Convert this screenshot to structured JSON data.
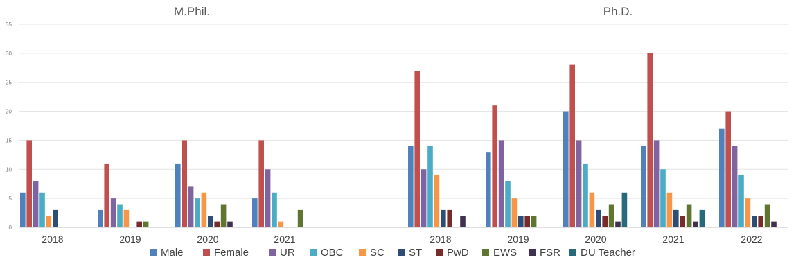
{
  "chart_data": {
    "type": "bar",
    "ylim": [
      0,
      35
    ],
    "yticks": [
      0,
      5,
      10,
      15,
      20,
      25,
      30,
      35
    ],
    "grid": true,
    "legend_position": "bottom",
    "series_names": [
      "Male",
      "Female",
      "UR",
      "OBC",
      "SC",
      "ST",
      "PwD",
      "EWS",
      "FSR",
      "DU Teacher"
    ],
    "colors": {
      "Male": "#4f81bd",
      "Female": "#c0504d",
      "UR": "#8064a2",
      "OBC": "#4bacc6",
      "SC": "#f79646",
      "ST": "#2c4d75",
      "PwD": "#772c2a",
      "EWS": "#5f7530",
      "FSR": "#403152",
      "DU Teacher": "#276a7c"
    },
    "panels": [
      {
        "title": "M.Phil.",
        "categories": [
          "2018",
          "2019",
          "2020",
          "2021"
        ],
        "series": [
          {
            "name": "Male",
            "values": [
              6,
              3,
              11,
              5
            ]
          },
          {
            "name": "Female",
            "values": [
              15,
              11,
              15,
              15
            ]
          },
          {
            "name": "UR",
            "values": [
              8,
              5,
              7,
              10
            ]
          },
          {
            "name": "OBC",
            "values": [
              6,
              4,
              5,
              6
            ]
          },
          {
            "name": "SC",
            "values": [
              2,
              3,
              6,
              1
            ]
          },
          {
            "name": "ST",
            "values": [
              3,
              0,
              2,
              0
            ]
          },
          {
            "name": "PwD",
            "values": [
              0,
              1,
              1,
              0
            ]
          },
          {
            "name": "EWS",
            "values": [
              0,
              1,
              4,
              3
            ]
          },
          {
            "name": "FSR",
            "values": [
              0,
              0,
              1,
              0
            ]
          },
          {
            "name": "DU Teacher",
            "values": [
              0,
              0,
              0,
              0
            ]
          }
        ]
      },
      {
        "title": "Ph.D.",
        "categories": [
          "2018",
          "2019",
          "2020",
          "2021",
          "2022"
        ],
        "series": [
          {
            "name": "Male",
            "values": [
              14,
              13,
              20,
              14,
              17
            ]
          },
          {
            "name": "Female",
            "values": [
              27,
              21,
              28,
              30,
              20
            ]
          },
          {
            "name": "UR",
            "values": [
              10,
              15,
              15,
              15,
              14
            ]
          },
          {
            "name": "OBC",
            "values": [
              14,
              8,
              11,
              10,
              9
            ]
          },
          {
            "name": "SC",
            "values": [
              9,
              5,
              6,
              6,
              5
            ]
          },
          {
            "name": "ST",
            "values": [
              3,
              2,
              3,
              3,
              2
            ]
          },
          {
            "name": "PwD",
            "values": [
              3,
              2,
              2,
              2,
              2
            ]
          },
          {
            "name": "EWS",
            "values": [
              0,
              2,
              4,
              4,
              4
            ]
          },
          {
            "name": "FSR",
            "values": [
              2,
              0,
              1,
              1,
              1
            ]
          },
          {
            "name": "DU Teacher",
            "values": [
              0,
              0,
              6,
              3,
              0
            ]
          }
        ]
      }
    ]
  }
}
